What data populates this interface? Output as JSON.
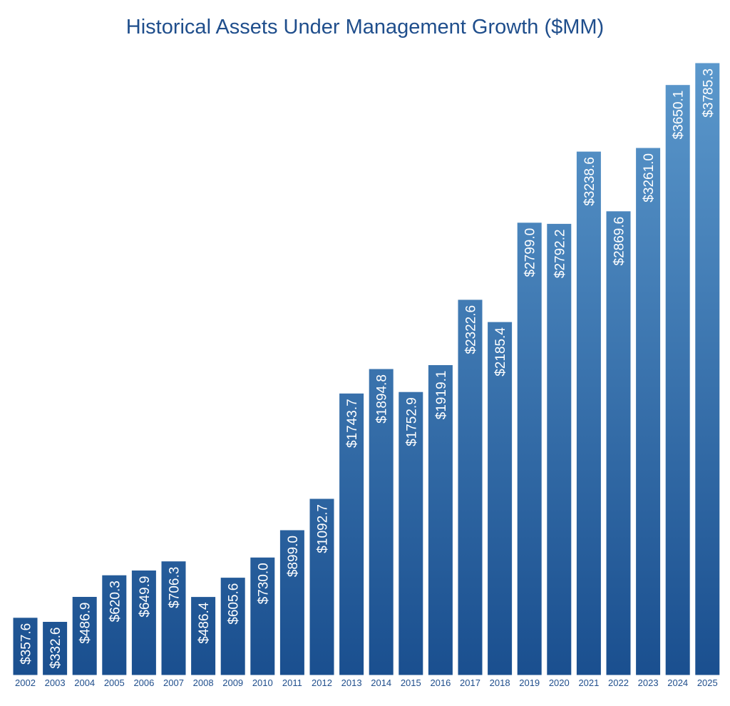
{
  "chart_data": {
    "type": "bar",
    "title": "Historical Assets Under Management Growth ($MM)",
    "categories": [
      "2002",
      "2003",
      "2004",
      "2005",
      "2006",
      "2007",
      "2008",
      "2009",
      "2010",
      "2011",
      "2012",
      "2013",
      "2014",
      "2015",
      "2016",
      "2017",
      "2018",
      "2019",
      "2020",
      "2021",
      "2022",
      "2023",
      "2024",
      "2025"
    ],
    "values": [
      357.6,
      332.6,
      486.9,
      620.3,
      649.9,
      706.3,
      486.4,
      605.6,
      730.0,
      899.0,
      1092.7,
      1743.7,
      1894.8,
      1752.9,
      1919.1,
      2322.6,
      2185.4,
      2799.0,
      2792.2,
      3238.6,
      2869.6,
      3261.0,
      3650.1,
      3785.3
    ],
    "labels": [
      "$357.6",
      "$332.6",
      "$486.9",
      "$620.3",
      "$649.9",
      "$706.3",
      "$486.4",
      "$605.6",
      "$730.0",
      "$899.0",
      "$1092.7",
      "$1743.7",
      "$1894.8",
      "$1752.9",
      "$1919.1",
      "$2322.6",
      "$2185.4",
      "$2799.0",
      "$2792.2",
      "$3238.6",
      "$2869.6",
      "$3261.0",
      "$3650.1",
      "$3785.3"
    ],
    "ylim": [
      0,
      3785.3
    ],
    "grid": false,
    "colors": {
      "bar_top": "#5b98cc",
      "bar_bottom": "#1a4f8f",
      "title": "#1f4e8c",
      "tick": "#1f4e8c",
      "label": "#ffffff"
    }
  }
}
